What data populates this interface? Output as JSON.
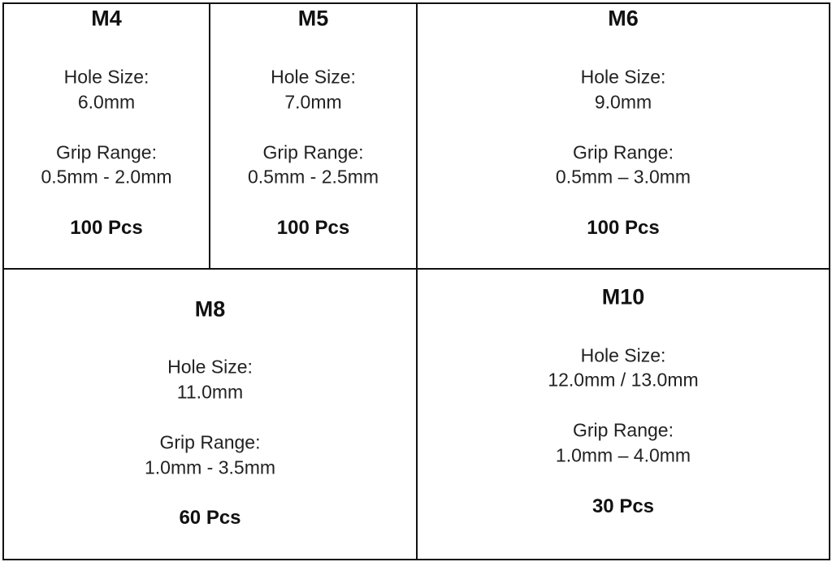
{
  "cells": [
    {
      "title": "M4",
      "hole_label": "Hole Size:",
      "hole_value": "6.0mm",
      "grip_label": "Grip Range:",
      "grip_value": "0.5mm - 2.0mm",
      "qty": "100 Pcs"
    },
    {
      "title": "M5",
      "hole_label": "Hole Size:",
      "hole_value": "7.0mm",
      "grip_label": "Grip Range:",
      "grip_value": "0.5mm - 2.5mm",
      "qty": "100 Pcs"
    },
    {
      "title": "M6",
      "hole_label": "Hole Size:",
      "hole_value": "9.0mm",
      "grip_label": "Grip Range:",
      "grip_value": "0.5mm – 3.0mm",
      "qty": "100 Pcs"
    },
    {
      "title": "M8",
      "hole_label": "Hole Size:",
      "hole_value": "11.0mm",
      "grip_label": "Grip Range:",
      "grip_value": "1.0mm - 3.5mm",
      "qty": "60 Pcs"
    },
    {
      "title": "M10",
      "hole_label": "Hole Size:",
      "hole_value": "12.0mm / 13.0mm",
      "grip_label": "Grip Range:",
      "grip_value": "1.0mm – 4.0mm",
      "qty": "30 Pcs"
    }
  ]
}
